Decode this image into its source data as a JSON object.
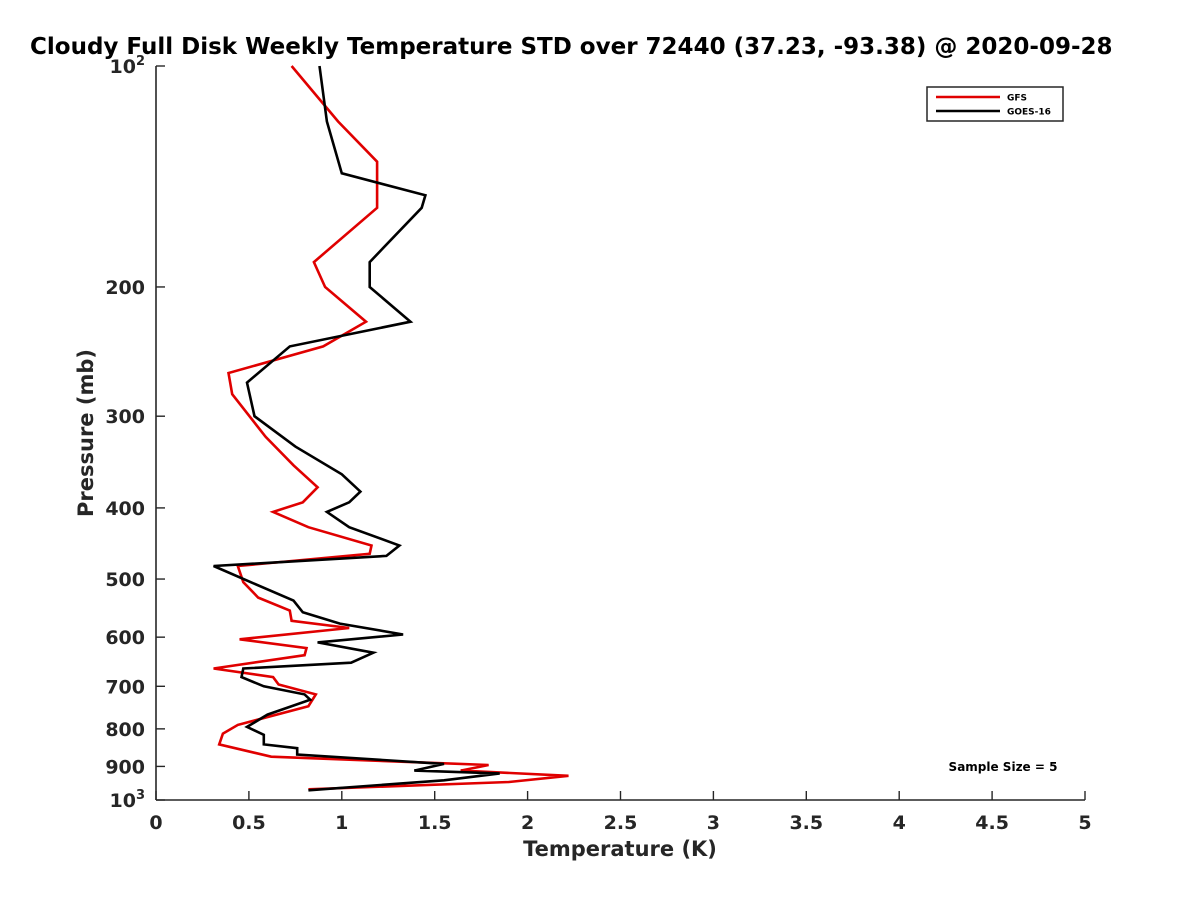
{
  "chart_data": {
    "type": "line",
    "title": "Cloudy Full Disk Weekly Temperature STD over 72440 (37.23, -93.38) @ 2020-09-28",
    "xlabel": "Temperature (K)",
    "ylabel": "Pressure (mb)",
    "xlim": [
      0,
      5
    ],
    "ylim": [
      100,
      1000
    ],
    "y_scale": "log",
    "y_reversed": true,
    "grid": false,
    "legend_position": "top-right",
    "x_ticks": [
      "0",
      "0.5",
      "1",
      "1.5",
      "2",
      "2.5",
      "3",
      "3.5",
      "4",
      "4.5",
      "5"
    ],
    "x_tick_values": [
      0,
      0.5,
      1,
      1.5,
      2,
      2.5,
      3,
      3.5,
      4,
      4.5,
      5
    ],
    "y_ticks": [
      {
        "value": 100,
        "base": "10",
        "exp": "2"
      },
      {
        "value": 200,
        "label": "200"
      },
      {
        "value": 300,
        "label": "300"
      },
      {
        "value": 400,
        "label": "400"
      },
      {
        "value": 500,
        "label": "500"
      },
      {
        "value": 600,
        "label": "600"
      },
      {
        "value": 700,
        "label": "700"
      },
      {
        "value": 800,
        "label": "800"
      },
      {
        "value": 900,
        "label": "900"
      },
      {
        "value": 1000,
        "base": "10",
        "exp": "3"
      }
    ],
    "annotation": "Sample Size = 5",
    "series": [
      {
        "name": "GFS",
        "color": "#e00000",
        "points": [
          [
            0.73,
            100
          ],
          [
            0.98,
            119
          ],
          [
            1.19,
            135
          ],
          [
            1.19,
            156
          ],
          [
            0.85,
            185
          ],
          [
            0.91,
            200
          ],
          [
            1.13,
            223
          ],
          [
            0.9,
            241
          ],
          [
            0.39,
            262
          ],
          [
            0.41,
            280
          ],
          [
            0.59,
            320
          ],
          [
            0.74,
            350
          ],
          [
            0.87,
            375
          ],
          [
            0.79,
            393
          ],
          [
            0.63,
            405
          ],
          [
            0.82,
            425
          ],
          [
            1.16,
            450
          ],
          [
            1.15,
            462
          ],
          [
            0.44,
            480
          ],
          [
            0.47,
            505
          ],
          [
            0.55,
            530
          ],
          [
            0.72,
            552
          ],
          [
            0.73,
            570
          ],
          [
            1.04,
            583
          ],
          [
            0.45,
            604
          ],
          [
            0.81,
            621
          ],
          [
            0.8,
            635
          ],
          [
            0.31,
            662
          ],
          [
            0.63,
            680
          ],
          [
            0.66,
            696
          ],
          [
            0.86,
            718
          ],
          [
            0.82,
            745
          ],
          [
            0.44,
            790
          ],
          [
            0.36,
            812
          ],
          [
            0.34,
            840
          ],
          [
            0.62,
            873
          ],
          [
            1.79,
            896
          ],
          [
            1.64,
            912
          ],
          [
            2.22,
            927
          ],
          [
            1.9,
            945
          ],
          [
            0.82,
            967
          ]
        ]
      },
      {
        "name": "GOES-16",
        "color": "#000000",
        "points": [
          [
            0.88,
            100
          ],
          [
            0.92,
            119
          ],
          [
            1.0,
            140
          ],
          [
            1.45,
            150
          ],
          [
            1.43,
            156
          ],
          [
            1.15,
            185
          ],
          [
            1.15,
            200
          ],
          [
            1.37,
            223
          ],
          [
            0.72,
            241
          ],
          [
            0.49,
            270
          ],
          [
            0.53,
            300
          ],
          [
            0.75,
            330
          ],
          [
            1.0,
            360
          ],
          [
            1.1,
            380
          ],
          [
            1.04,
            393
          ],
          [
            0.92,
            405
          ],
          [
            1.04,
            425
          ],
          [
            1.31,
            450
          ],
          [
            1.24,
            465
          ],
          [
            0.31,
            480
          ],
          [
            0.51,
            505
          ],
          [
            0.74,
            535
          ],
          [
            0.79,
            555
          ],
          [
            0.99,
            575
          ],
          [
            1.33,
            595
          ],
          [
            0.87,
            610
          ],
          [
            1.17,
            630
          ],
          [
            1.05,
            650
          ],
          [
            0.47,
            662
          ],
          [
            0.46,
            680
          ],
          [
            0.58,
            700
          ],
          [
            0.8,
            718
          ],
          [
            0.83,
            730
          ],
          [
            0.6,
            765
          ],
          [
            0.49,
            795
          ],
          [
            0.58,
            815
          ],
          [
            0.58,
            840
          ],
          [
            0.76,
            850
          ],
          [
            0.76,
            867
          ],
          [
            1.55,
            893
          ],
          [
            1.39,
            912
          ],
          [
            1.85,
            920
          ],
          [
            1.55,
            940
          ],
          [
            0.82,
            970
          ]
        ]
      }
    ]
  }
}
